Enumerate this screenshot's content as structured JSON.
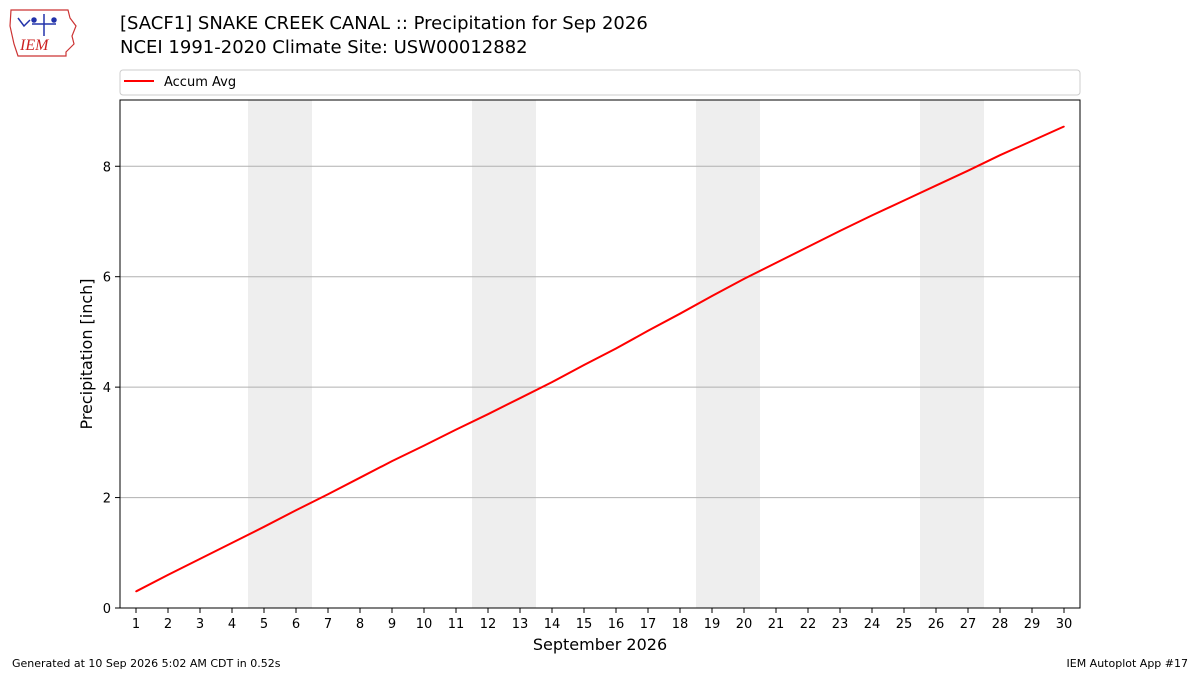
{
  "header": {
    "title_line1": "[SACF1] SNAKE CREEK CANAL :: Precipitation for Sep 2026",
    "title_line2": "NCEI 1991-2020 Climate Site: USW00012882"
  },
  "logo": {
    "text": "IEM"
  },
  "footer": {
    "generated": "Generated at 10 Sep 2026 5:02 AM CDT in 0.52s",
    "app": "IEM Autoplot App #17"
  },
  "chart_data": {
    "type": "line",
    "title": "[SACF1] SNAKE CREEK CANAL :: Precipitation for Sep 2026",
    "subtitle": "NCEI 1991-2020 Climate Site: USW00012882",
    "xlabel": "September 2026",
    "ylabel": "Precipitation [inch]",
    "x": [
      1,
      2,
      3,
      4,
      5,
      6,
      7,
      8,
      9,
      10,
      11,
      12,
      13,
      14,
      15,
      16,
      17,
      18,
      19,
      20,
      21,
      22,
      23,
      24,
      25,
      26,
      27,
      28,
      29,
      30
    ],
    "xlim": [
      0.5,
      30.5
    ],
    "ylim": [
      0,
      9.2
    ],
    "yticks": [
      0,
      2,
      4,
      6,
      8
    ],
    "grid": "y",
    "legend_position": "top",
    "weekend_shading": [
      [
        4.5,
        6.5
      ],
      [
        11.5,
        13.5
      ],
      [
        18.5,
        20.5
      ],
      [
        25.5,
        27.5
      ]
    ],
    "colors": {
      "series": "#ff0000",
      "shade": "#eeeeee",
      "grid": "#b0b0b0"
    },
    "series": [
      {
        "name": "Accum Avg",
        "values": [
          0.3,
          0.6,
          0.89,
          1.18,
          1.47,
          1.77,
          2.06,
          2.36,
          2.66,
          2.94,
          3.23,
          3.51,
          3.8,
          4.09,
          4.4,
          4.7,
          5.02,
          5.33,
          5.65,
          5.96,
          6.25,
          6.54,
          6.83,
          7.11,
          7.38,
          7.65,
          7.92,
          8.2,
          8.46,
          8.72
        ]
      }
    ]
  }
}
